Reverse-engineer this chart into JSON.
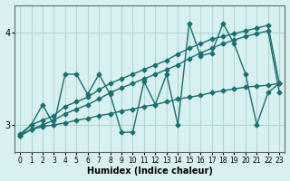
{
  "x": [
    0,
    1,
    2,
    3,
    4,
    5,
    6,
    7,
    8,
    9,
    10,
    11,
    12,
    13,
    14,
    15,
    16,
    17,
    18,
    19,
    20,
    21,
    22,
    23
  ],
  "y_main": [
    2.88,
    3.0,
    3.22,
    3.0,
    3.55,
    3.55,
    3.33,
    3.55,
    3.33,
    2.92,
    2.92,
    3.47,
    3.22,
    3.55,
    3.0,
    4.1,
    3.75,
    3.78,
    4.1,
    3.88,
    3.55,
    3.0,
    3.35,
    3.45
  ],
  "y_upper1": [
    2.9,
    3.0,
    3.05,
    3.1,
    3.2,
    3.25,
    3.3,
    3.38,
    3.45,
    3.5,
    3.55,
    3.6,
    3.65,
    3.7,
    3.77,
    3.83,
    3.88,
    3.93,
    3.96,
    3.99,
    4.02,
    4.05,
    4.08,
    3.45
  ],
  "y_upper2": [
    2.88,
    2.95,
    3.0,
    3.05,
    3.12,
    3.17,
    3.22,
    3.28,
    3.35,
    3.4,
    3.45,
    3.5,
    3.55,
    3.6,
    3.65,
    3.72,
    3.78,
    3.83,
    3.88,
    3.92,
    3.96,
    3.99,
    4.02,
    3.35
  ],
  "y_lower": [
    2.88,
    2.95,
    2.98,
    3.0,
    3.02,
    3.05,
    3.07,
    3.1,
    3.12,
    3.15,
    3.17,
    3.2,
    3.22,
    3.25,
    3.28,
    3.3,
    3.32,
    3.35,
    3.37,
    3.39,
    3.41,
    3.42,
    3.43,
    3.45
  ],
  "bg_color": "#d8f0f0",
  "line_color": "#1a7070",
  "grid_color": "#b0d8d8",
  "xlabel": "Humidex (Indice chaleur)",
  "yticks": [
    3,
    4
  ],
  "xlim": [
    -0.5,
    23.5
  ],
  "ylim": [
    2.7,
    4.3
  ]
}
